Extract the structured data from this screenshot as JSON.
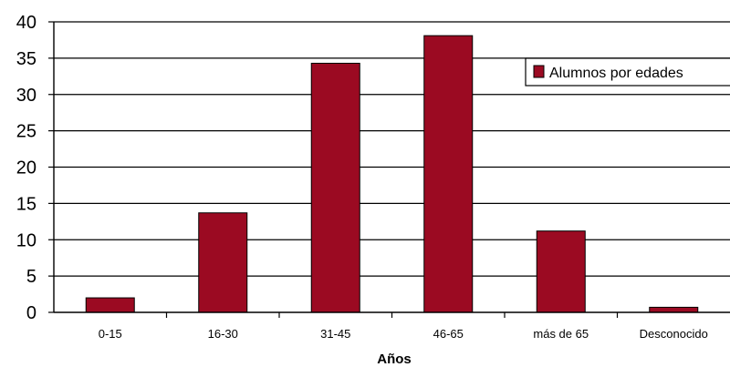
{
  "chart_data": {
    "type": "bar",
    "categories": [
      "0-15",
      "16-30",
      "31-45",
      "46-65",
      "más de 65",
      "Desconocido"
    ],
    "series": [
      {
        "name": "Alumnos por edades",
        "values": [
          2,
          13.7,
          34.3,
          38.1,
          11.2,
          0.7
        ]
      }
    ],
    "xlabel": "Años",
    "ylabel": "",
    "ylim": [
      0,
      40
    ],
    "yticks": [
      "0",
      "5",
      "10",
      "15",
      "20",
      "25",
      "30",
      "35",
      "40"
    ],
    "grid": true,
    "legend_position": "top-right",
    "colors": {
      "bar": "#9b0a22",
      "bar_stroke": "#000000",
      "grid": "#000000"
    }
  }
}
